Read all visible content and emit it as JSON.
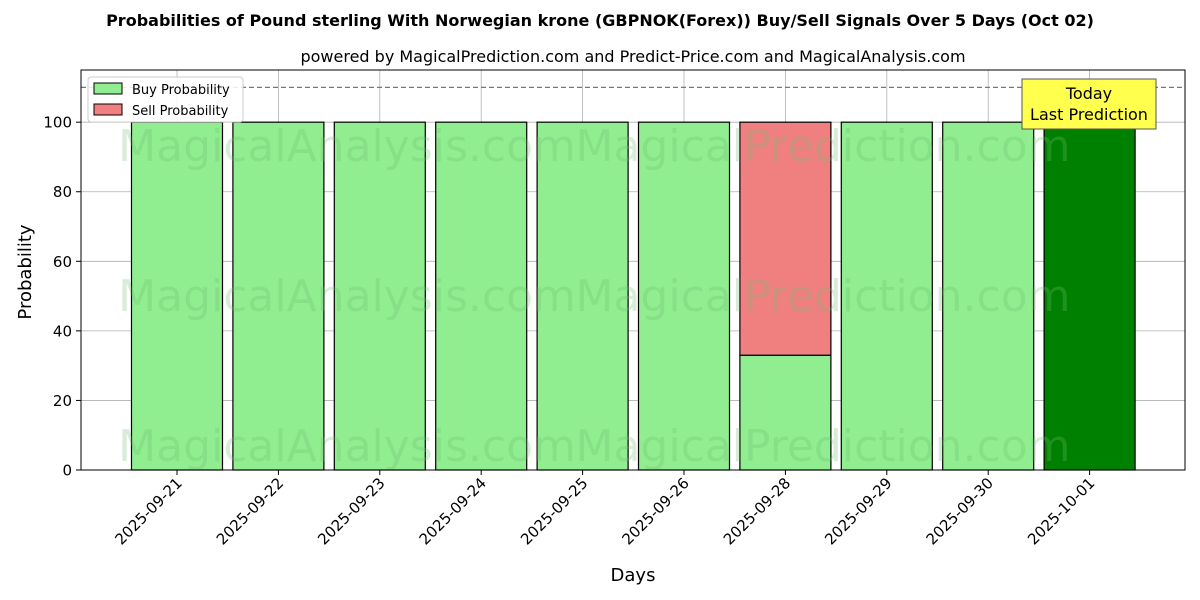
{
  "chart_data": {
    "type": "bar",
    "stacked": true,
    "title": "Probabilities of Pound sterling With Norwegian krone (GBPNOK(Forex)) Buy/Sell Signals Over 5 Days (Oct 02)",
    "subtitle": "powered by MagicalPrediction.com and Predict-Price.com and MagicalAnalysis.com",
    "xlabel": "Days",
    "ylabel": "Probability",
    "ylim": [
      0,
      115
    ],
    "yticks": [
      0,
      20,
      40,
      60,
      80,
      100
    ],
    "categories": [
      "2025-09-21",
      "2025-09-22",
      "2025-09-23",
      "2025-09-24",
      "2025-09-25",
      "2025-09-26",
      "2025-09-28",
      "2025-09-29",
      "2025-09-30",
      "2025-10-01"
    ],
    "series": [
      {
        "name": "Buy Probability",
        "color": "#90ee90",
        "values": [
          100,
          100,
          100,
          100,
          100,
          100,
          33,
          100,
          100,
          100
        ]
      },
      {
        "name": "Sell Probability",
        "color": "#f08080",
        "values": [
          0,
          0,
          0,
          0,
          0,
          0,
          67,
          0,
          0,
          0
        ]
      }
    ],
    "highlight": {
      "index": 9,
      "color": "#008000"
    },
    "reference_line": {
      "y": 110,
      "style": "dashed"
    },
    "annotation": {
      "line1": "Today",
      "line2": "Last Prediction",
      "background": "#ffff4d"
    },
    "legend_position": "top-left",
    "grid": true,
    "watermarks": [
      "MagicalAnalysis.com",
      "MagicalPrediction.com"
    ]
  }
}
